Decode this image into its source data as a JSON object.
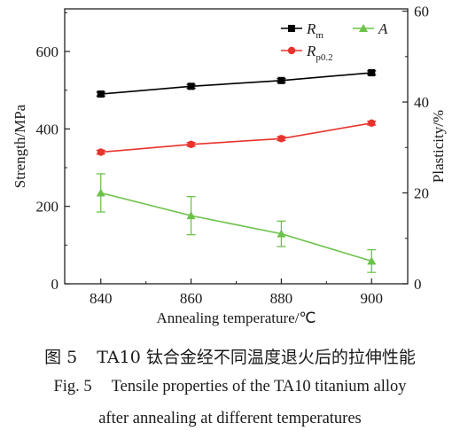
{
  "chart_data": {
    "type": "line",
    "x": [
      840,
      860,
      880,
      900
    ],
    "xlabel": "Annealing temperature/℃",
    "xticks": [
      "840",
      "860",
      "880",
      "900"
    ],
    "xlim": [
      832,
      908
    ],
    "ylabel_left": "Strength/MPa",
    "yticks_left": [
      "0",
      "200",
      "400",
      "600"
    ],
    "ylim_left": [
      0,
      710
    ],
    "ylabel_right": "Plasticity/%",
    "yticks_right": [
      "0",
      "20",
      "40",
      "60"
    ],
    "ylim_right": [
      0,
      60.5
    ],
    "grid": false,
    "legend_position": "top-right",
    "series": [
      {
        "name": "Rm",
        "label_main": "R",
        "label_sub": "m",
        "axis": "left",
        "marker": "square",
        "color": "#000000",
        "values": [
          490,
          510,
          525,
          545
        ],
        "errors": [
          5,
          5,
          5,
          5
        ]
      },
      {
        "name": "Rp0.2",
        "label_main": "R",
        "label_sub": "p0.2",
        "axis": "left",
        "marker": "circle",
        "color": "#e8322c",
        "values": [
          340,
          360,
          375,
          415
        ],
        "errors": [
          5,
          5,
          5,
          5
        ]
      },
      {
        "name": "A",
        "label_main": "A",
        "label_sub": "",
        "axis": "right",
        "marker": "triangle",
        "color": "#6cc24a",
        "values": [
          20,
          15,
          11,
          5
        ],
        "errors": [
          4.2,
          4.2,
          2.8,
          2.5
        ]
      }
    ]
  },
  "caption": {
    "cn_num": "图 5",
    "cn_text": "TA10 钛合金经不同温度退火后的拉伸性能",
    "en_num": "Fig. 5",
    "en_line1": "Tensile properties of the TA10 titanium alloy",
    "en_line2": "after annealing at different temperatures"
  }
}
